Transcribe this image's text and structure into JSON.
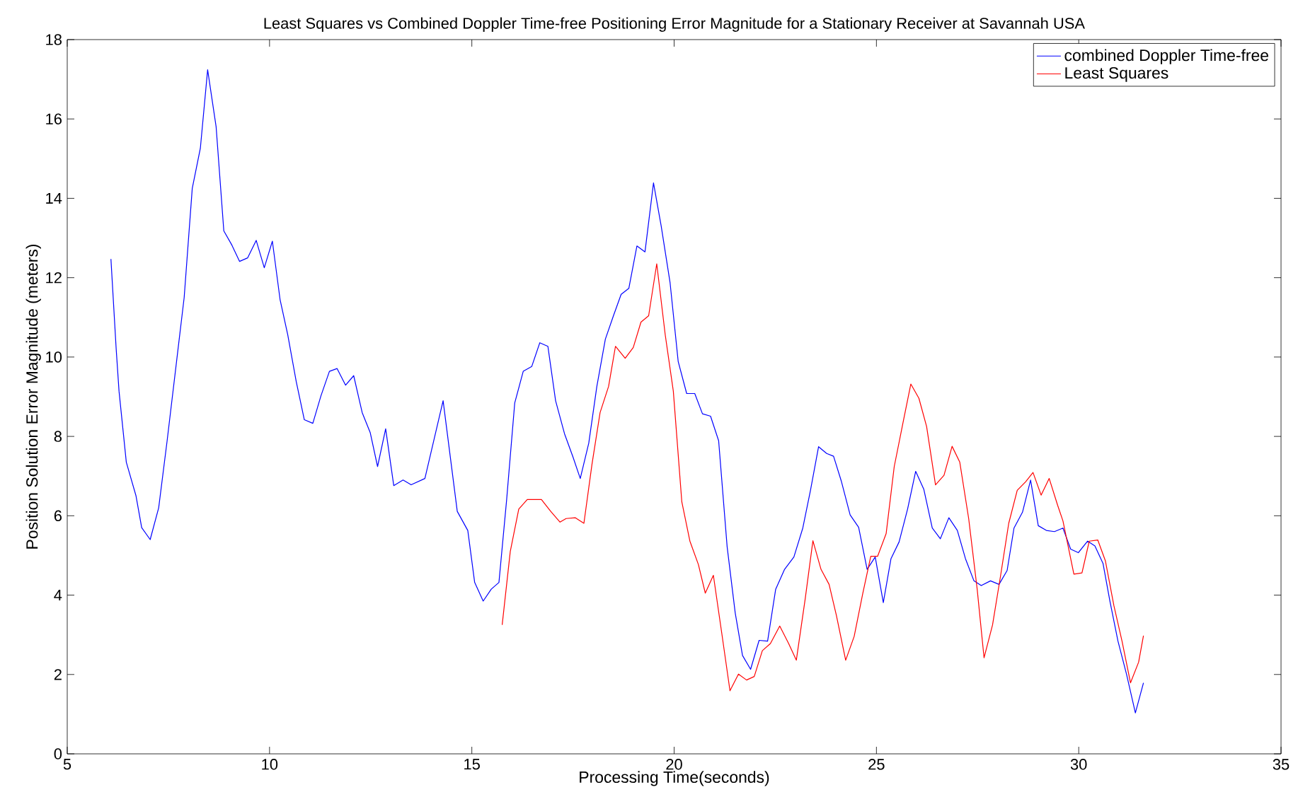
{
  "chart_data": {
    "type": "line",
    "title": "Least Squares vs Combined Doppler Time-free Positioning Error Magnitude for a Stationary Receiver at Savannah USA",
    "xlabel": "Processing Time(seconds)",
    "ylabel": "Position Solution Error Magnitude (meters)",
    "xlim": [
      5,
      35
    ],
    "ylim": [
      0,
      18
    ],
    "xticks": [
      5,
      10,
      15,
      20,
      25,
      30,
      35
    ],
    "yticks": [
      0,
      2,
      4,
      6,
      8,
      10,
      12,
      14,
      16,
      18
    ],
    "grid": false,
    "legend": "top right",
    "marker": "none",
    "line_style": "solid",
    "series": [
      {
        "name": "combined Doppler Time-free",
        "color": "#0000ff",
        "x": [
          6.08,
          6.21,
          6.28,
          6.46,
          6.7,
          6.84,
          7.05,
          7.26,
          7.47,
          7.68,
          7.89,
          8.09,
          8.29,
          8.47,
          8.68,
          8.87,
          9.07,
          9.26,
          9.46,
          9.67,
          9.87,
          10.07,
          10.26,
          10.45,
          10.66,
          10.86,
          11.07,
          11.27,
          11.48,
          11.67,
          11.88,
          12.08,
          12.29,
          12.49,
          12.67,
          12.87,
          13.07,
          13.3,
          13.5,
          13.84,
          14.29,
          14.64,
          14.9,
          15.07,
          15.28,
          15.48,
          15.67,
          15.86,
          16.06,
          16.27,
          16.48,
          16.68,
          16.88,
          17.07,
          17.29,
          17.5,
          17.68,
          17.89,
          18.09,
          18.3,
          18.5,
          18.69,
          18.88,
          19.08,
          19.28,
          19.49,
          19.68,
          19.9,
          20.1,
          20.31,
          20.51,
          20.7,
          20.9,
          21.1,
          21.31,
          21.51,
          21.69,
          21.89,
          22.1,
          22.31,
          22.51,
          22.73,
          22.96,
          23.18,
          23.37,
          23.57,
          23.77,
          23.94,
          24.13,
          24.35,
          24.56,
          24.77,
          24.97,
          25.17,
          25.36,
          25.56,
          25.77,
          25.97,
          26.17,
          26.38,
          26.58,
          26.79,
          27.0,
          27.2,
          27.41,
          27.59,
          27.82,
          28.03,
          28.23,
          28.4,
          28.61,
          28.81,
          29.0,
          29.2,
          29.4,
          29.61,
          29.8,
          29.99,
          30.22,
          30.4,
          30.6,
          30.77,
          30.97,
          31.18,
          31.4,
          31.6
        ],
        "values": [
          12.47,
          10.2,
          9.14,
          7.35,
          6.5,
          5.7,
          5.4,
          6.2,
          7.9,
          9.7,
          11.5,
          14.25,
          15.26,
          17.24,
          15.8,
          13.18,
          12.82,
          12.41,
          12.5,
          12.94,
          12.25,
          12.92,
          11.45,
          10.56,
          9.38,
          8.42,
          8.33,
          9.02,
          9.64,
          9.71,
          9.29,
          9.53,
          8.6,
          8.09,
          7.24,
          8.19,
          6.76,
          6.9,
          6.78,
          6.94,
          8.9,
          6.11,
          5.63,
          4.32,
          3.85,
          4.15,
          4.32,
          6.4,
          8.84,
          9.64,
          9.76,
          10.36,
          10.27,
          8.9,
          8.07,
          7.48,
          6.94,
          7.83,
          9.26,
          10.45,
          11.04,
          11.58,
          11.73,
          12.8,
          12.65,
          14.39,
          13.3,
          11.87,
          9.89,
          9.08,
          9.08,
          8.57,
          8.51,
          7.89,
          5.22,
          3.55,
          2.48,
          2.13,
          2.86,
          2.84,
          4.15,
          4.65,
          4.96,
          5.69,
          6.64,
          7.74,
          7.57,
          7.5,
          6.88,
          6.02,
          5.71,
          4.65,
          4.96,
          3.81,
          4.92,
          5.34,
          6.17,
          7.12,
          6.67,
          5.69,
          5.42,
          5.95,
          5.63,
          4.92,
          4.36,
          4.24,
          4.36,
          4.27,
          4.62,
          5.69,
          6.09,
          6.9,
          5.75,
          5.63,
          5.6,
          5.69,
          5.16,
          5.07,
          5.36,
          5.24,
          4.8,
          3.85,
          2.84,
          2.01,
          1.03,
          1.79
        ]
      },
      {
        "name": "Least Squares",
        "color": "#ff0000",
        "x": [
          15.75,
          15.95,
          16.16,
          16.37,
          16.72,
          16.95,
          17.18,
          17.33,
          17.56,
          17.77,
          17.97,
          18.17,
          18.38,
          18.55,
          18.79,
          18.99,
          19.18,
          19.37,
          19.57,
          19.78,
          19.98,
          20.19,
          20.39,
          20.6,
          20.77,
          20.97,
          21.18,
          21.38,
          21.59,
          21.79,
          21.98,
          22.18,
          22.38,
          22.61,
          22.83,
          23.02,
          23.24,
          23.43,
          23.63,
          23.83,
          24.01,
          24.24,
          24.45,
          24.66,
          24.86,
          25.03,
          25.24,
          25.44,
          25.65,
          25.85,
          26.05,
          26.24,
          26.46,
          26.67,
          26.87,
          27.06,
          27.28,
          27.49,
          27.66,
          27.87,
          28.07,
          28.27,
          28.48,
          28.69,
          28.87,
          29.07,
          29.27,
          29.48,
          29.61,
          29.88,
          30.08,
          30.26,
          30.47,
          30.66,
          30.87,
          31.07,
          31.28,
          31.48,
          31.6
        ],
        "values": [
          3.25,
          5.1,
          6.17,
          6.41,
          6.41,
          6.11,
          5.84,
          5.93,
          5.95,
          5.81,
          7.3,
          8.6,
          9.26,
          10.27,
          9.97,
          10.24,
          10.88,
          11.04,
          12.35,
          10.56,
          9.14,
          6.35,
          5.36,
          4.77,
          4.05,
          4.5,
          3.02,
          1.59,
          2.01,
          1.86,
          1.95,
          2.6,
          2.78,
          3.22,
          2.78,
          2.36,
          3.91,
          5.37,
          4.65,
          4.27,
          3.49,
          2.36,
          2.96,
          4.03,
          4.98,
          4.98,
          5.55,
          7.24,
          8.31,
          9.32,
          8.96,
          8.25,
          6.78,
          7.02,
          7.75,
          7.35,
          5.93,
          4.15,
          2.42,
          3.25,
          4.5,
          5.81,
          6.64,
          6.86,
          7.09,
          6.52,
          6.94,
          6.26,
          5.87,
          4.53,
          4.56,
          5.36,
          5.39,
          4.86,
          3.73,
          2.84,
          1.79,
          2.31,
          2.98
        ]
      }
    ]
  }
}
